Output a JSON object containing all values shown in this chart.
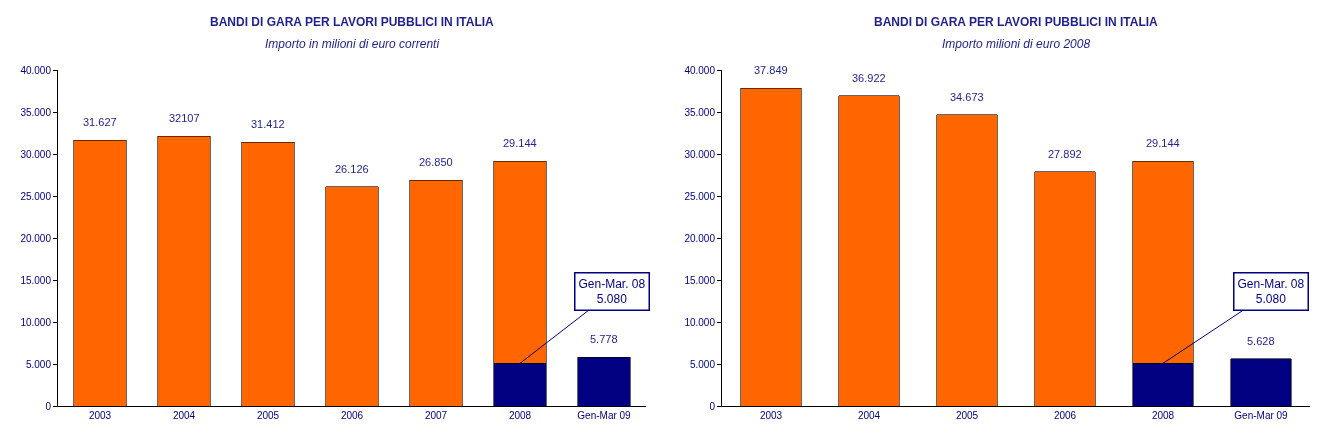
{
  "chart_data": [
    {
      "type": "bar",
      "title": "BANDI DI GARA PER LAVORI PUBBLICI IN ITALIA",
      "subtitle": "Importo in milioni di euro correnti",
      "stacked": true,
      "grid": false,
      "categories": [
        "2003",
        "2004",
        "2005",
        "2006",
        "2007",
        "2008",
        "Gen-Mar 09"
      ],
      "series": [
        {
          "color": "#000080",
          "values": [
            null,
            null,
            null,
            null,
            null,
            5080,
            5778
          ]
        },
        {
          "color": "#ff6600",
          "values": [
            31627,
            32107,
            31412,
            26126,
            26850,
            24064,
            null
          ]
        }
      ],
      "totals": [
        "31.627",
        "32107",
        "31.412",
        "26.126",
        "26.850",
        "29.144",
        "5.778"
      ],
      "annotations": [
        {
          "text": "Gen-Mar. 08\n5.080",
          "x": "2008",
          "y": 5080
        }
      ],
      "ylim": [
        0,
        40000
      ],
      "yticks": [
        0,
        {
          "value": 5000,
          "label": "5.000"
        },
        {
          "value": 10000,
          "label": "10.000"
        },
        {
          "value": 15000,
          "label": "15.000"
        },
        {
          "value": 20000,
          "label": "20.000"
        },
        {
          "value": 25000,
          "label": "25.000"
        },
        {
          "value": 30000,
          "label": "30.000"
        },
        {
          "value": 35000,
          "label": "35.000"
        },
        {
          "value": 40000,
          "label": "40.000"
        }
      ]
    },
    {
      "type": "bar",
      "title": "BANDI DI GARA PER LAVORI PUBBLICI IN ITALIA",
      "subtitle": "Importo milioni di euro 2008",
      "stacked": true,
      "grid": false,
      "categories": [
        "2003",
        "2004",
        "2005",
        "2006",
        "2008",
        "Gen-Mar 09"
      ],
      "series": [
        {
          "color": "#000080",
          "values": [
            null,
            null,
            null,
            null,
            5080,
            5628
          ]
        },
        {
          "color": "#ff6600",
          "values": [
            37849,
            36922,
            34673,
            27892,
            24064,
            null
          ]
        }
      ],
      "totals": [
        "37.849",
        "36.922",
        "34.673",
        "27.892",
        "29.144",
        "5.628"
      ],
      "annotations": [
        {
          "text": "Gen-Mar. 08\n5.080",
          "x": "2008",
          "y": 5080
        }
      ],
      "ylim": [
        0,
        40000
      ],
      "yticks": [
        0,
        {
          "value": 5000,
          "label": "5.000"
        },
        {
          "value": 10000,
          "label": "10.000"
        },
        {
          "value": 15000,
          "label": "15.000"
        },
        {
          "value": 20000,
          "label": "20.000"
        },
        {
          "value": 25000,
          "label": "25.000"
        },
        {
          "value": 30000,
          "label": "30.000"
        },
        {
          "value": 35000,
          "label": "35.000"
        },
        {
          "value": 40000,
          "label": "40.000"
        }
      ]
    }
  ]
}
